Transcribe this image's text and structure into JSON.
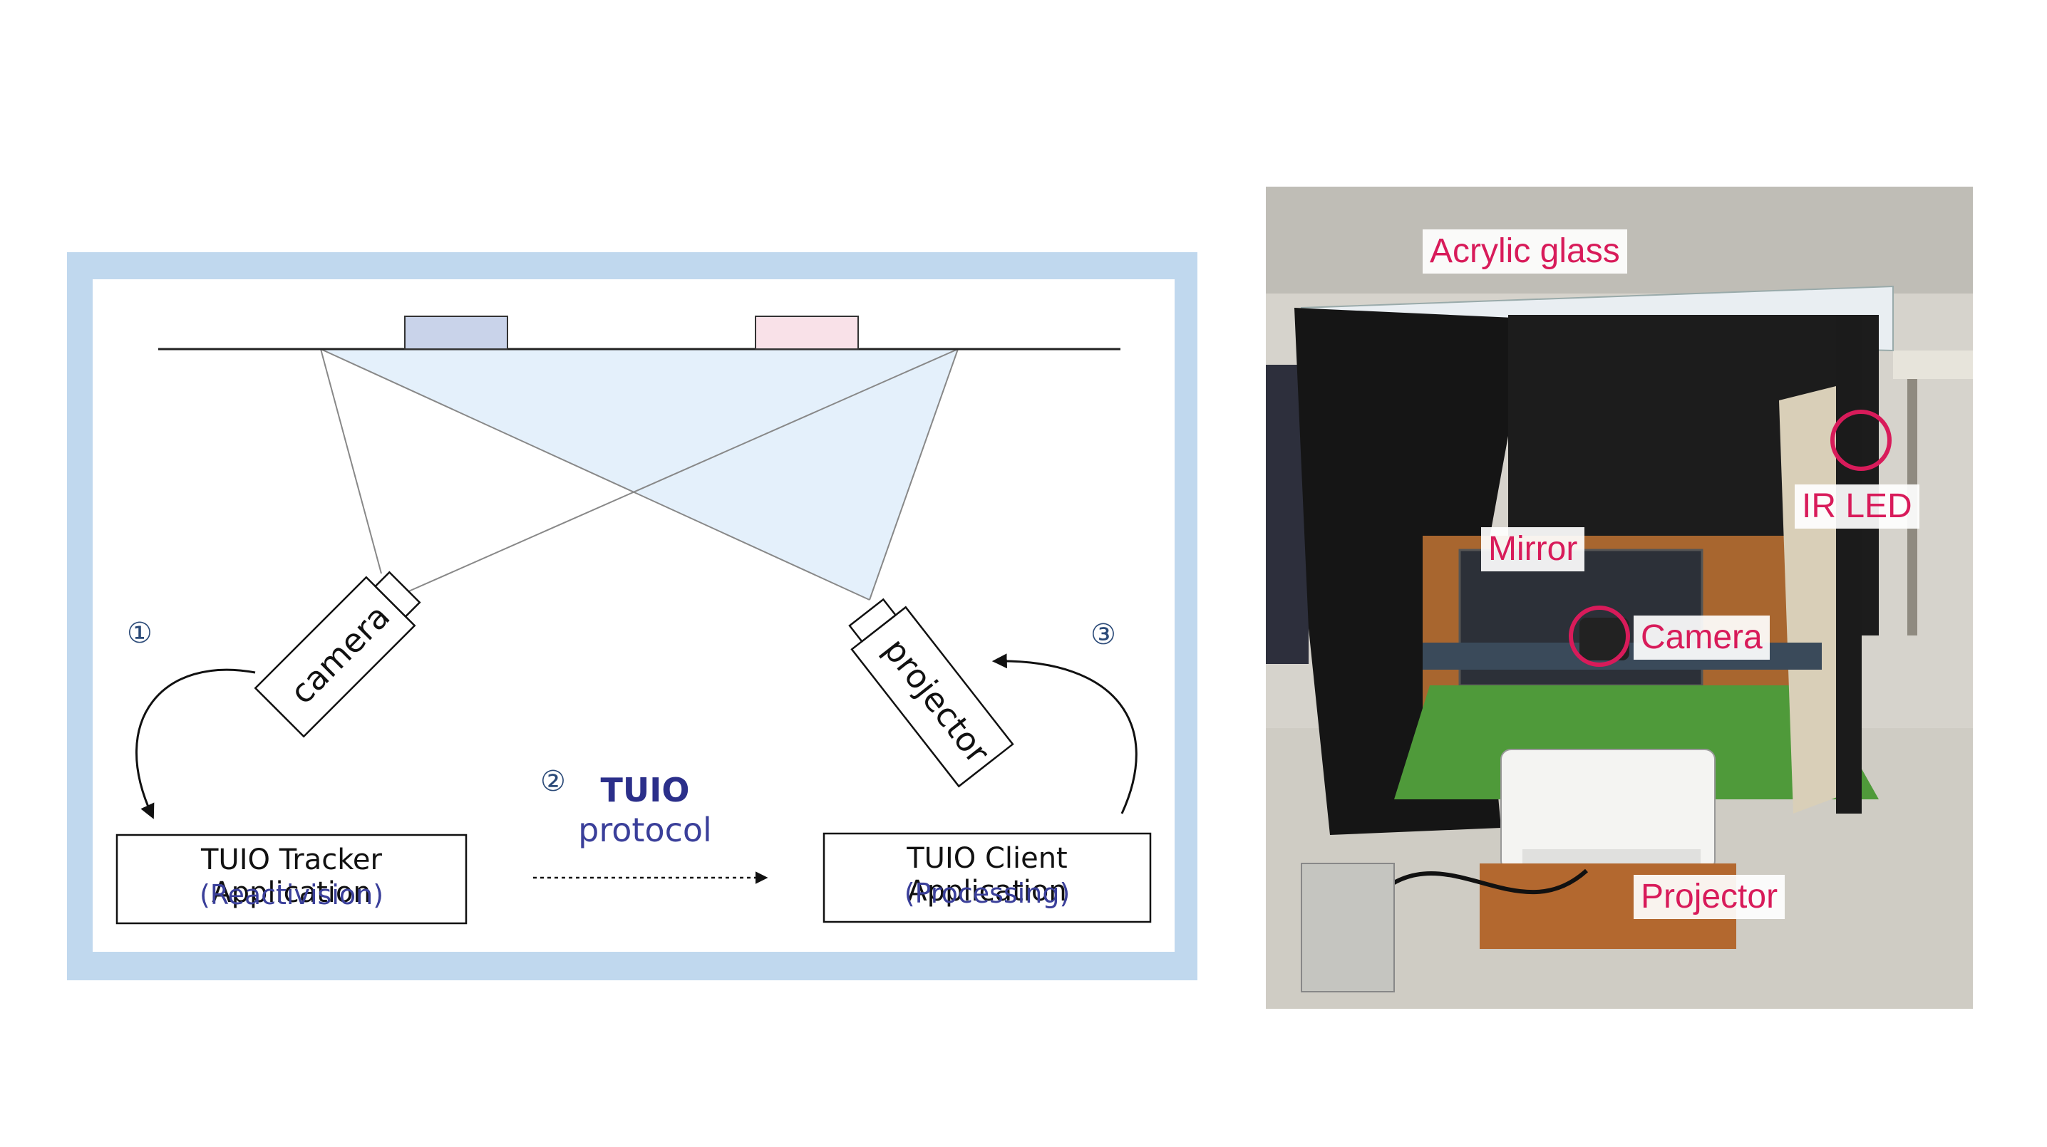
{
  "diagram": {
    "step_markers": [
      "①",
      "②",
      "③"
    ],
    "devices": {
      "camera": "camera",
      "projector": "projector"
    },
    "protocol": {
      "title": "TUIO",
      "subtitle": "protocol"
    },
    "tracker_box": {
      "title": "TUIO Tracker Application",
      "subtitle": "(Reactivision)"
    },
    "client_box": {
      "title": "TUIO Client Application",
      "subtitle": "(Processing)"
    },
    "colors": {
      "frame": "#c0d8ee",
      "projection_fill": "#e4f0fb",
      "marker_left": "#c9d3ea",
      "marker_right": "#f9e1e8",
      "text_accent": "#2b2f8a"
    }
  },
  "photo": {
    "labels": {
      "acrylic_glass": "Acrylic glass",
      "ir_led": "IR LED",
      "mirror": "Mirror",
      "camera": "Camera",
      "projector": "Projector"
    },
    "highlight_color": "#d81b5a"
  }
}
